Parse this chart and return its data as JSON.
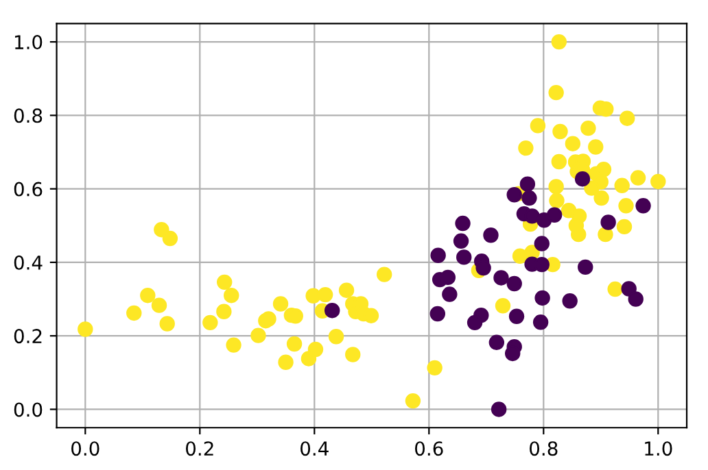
{
  "chart_data": {
    "type": "scatter",
    "xlim": [
      -0.05,
      1.05
    ],
    "ylim": [
      -0.05,
      1.05
    ],
    "xticks": [
      {
        "value": 0,
        "label": "0.0"
      },
      {
        "value": 0.2,
        "label": "0.2"
      },
      {
        "value": 0.4,
        "label": "0.4"
      },
      {
        "value": 0.6,
        "label": "0.6"
      },
      {
        "value": 0.8,
        "label": "0.8"
      },
      {
        "value": 1,
        "label": "1.0"
      }
    ],
    "yticks": [
      {
        "value": 0,
        "label": "0.0"
      },
      {
        "value": 0.2,
        "label": "0.2"
      },
      {
        "value": 0.4,
        "label": "0.4"
      },
      {
        "value": 0.6,
        "label": "0.6"
      },
      {
        "value": 0.8,
        "label": "0.8"
      },
      {
        "value": 1,
        "label": "1.0"
      }
    ],
    "grid": true,
    "marker": "circle",
    "series": [
      {
        "color": "#fde725",
        "x": [
          0.0,
          0.085,
          0.109,
          0.129,
          0.133,
          0.148,
          0.143,
          0.218,
          0.243,
          0.242,
          0.255,
          0.259,
          0.302,
          0.315,
          0.32,
          0.341,
          0.35,
          0.36,
          0.367,
          0.365,
          0.39,
          0.398,
          0.402,
          0.414,
          0.419,
          0.438,
          0.456,
          0.467,
          0.467,
          0.472,
          0.481,
          0.486,
          0.499,
          0.522,
          0.61,
          0.572,
          0.687,
          0.729,
          0.759,
          0.78,
          0.816,
          0.925,
          0.861,
          0.908,
          0.827,
          0.822,
          0.899,
          0.909,
          0.946,
          0.79,
          0.829,
          0.878,
          0.851,
          0.891,
          0.769,
          0.827,
          0.856,
          0.869,
          0.859,
          0.868,
          0.892,
          0.905,
          0.9,
          0.884,
          0.937,
          0.965,
          1.0,
          0.822,
          0.757,
          0.901,
          0.823,
          0.944,
          0.844,
          0.862,
          0.857,
          0.941,
          0.777
        ],
        "values": [
          0.218,
          0.262,
          0.31,
          0.283,
          0.489,
          0.465,
          0.233,
          0.236,
          0.346,
          0.266,
          0.31,
          0.175,
          0.201,
          0.241,
          0.246,
          0.287,
          0.128,
          0.256,
          0.254,
          0.178,
          0.138,
          0.309,
          0.163,
          0.268,
          0.312,
          0.198,
          0.324,
          0.149,
          0.287,
          0.266,
          0.287,
          0.26,
          0.255,
          0.367,
          0.113,
          0.023,
          0.378,
          0.282,
          0.417,
          0.427,
          0.394,
          0.327,
          0.476,
          0.476,
          1.0,
          0.862,
          0.82,
          0.817,
          0.792,
          0.772,
          0.756,
          0.765,
          0.723,
          0.714,
          0.711,
          0.674,
          0.673,
          0.675,
          0.647,
          0.652,
          0.641,
          0.653,
          0.619,
          0.602,
          0.609,
          0.63,
          0.62,
          0.606,
          0.587,
          0.575,
          0.568,
          0.554,
          0.541,
          0.526,
          0.5,
          0.497,
          0.504
        ]
      },
      {
        "color": "#440154",
        "x": [
          0.431,
          0.656,
          0.708,
          0.797,
          0.616,
          0.661,
          0.692,
          0.695,
          0.78,
          0.797,
          0.873,
          0.619,
          0.633,
          0.726,
          0.749,
          0.636,
          0.798,
          0.846,
          0.949,
          0.961,
          0.615,
          0.691,
          0.68,
          0.753,
          0.795,
          0.718,
          0.749,
          0.746,
          0.722,
          0.772,
          0.749,
          0.775,
          0.868,
          0.974,
          0.766,
          0.78,
          0.801,
          0.819,
          0.913,
          0.659
        ],
        "values": [
          0.269,
          0.458,
          0.474,
          0.451,
          0.419,
          0.414,
          0.403,
          0.385,
          0.395,
          0.394,
          0.387,
          0.353,
          0.359,
          0.358,
          0.342,
          0.313,
          0.303,
          0.295,
          0.328,
          0.3,
          0.26,
          0.256,
          0.236,
          0.253,
          0.237,
          0.182,
          0.17,
          0.152,
          0.0,
          0.613,
          0.584,
          0.575,
          0.627,
          0.554,
          0.532,
          0.526,
          0.515,
          0.529,
          0.509,
          0.506
        ]
      }
    ]
  }
}
